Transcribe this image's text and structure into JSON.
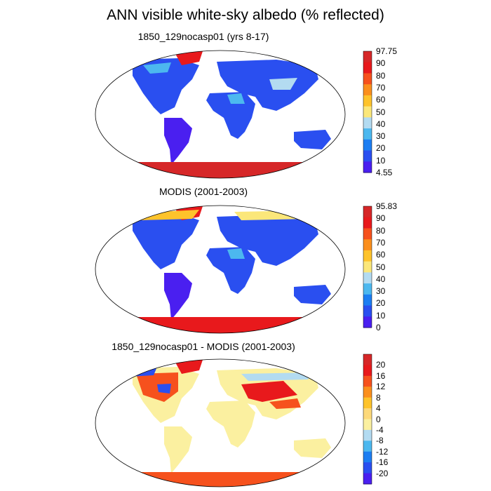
{
  "title": "ANN visible white-sky albedo (% reflected)",
  "panels": [
    {
      "title": "1850_129nocasp01 (yrs 8-17)",
      "colorbar": {
        "labels": [
          "97.75",
          "90",
          "80",
          "70",
          "60",
          "50",
          "40",
          "30",
          "20",
          "10",
          "4.55"
        ],
        "colors": [
          "#d62728",
          "#e8191c",
          "#f6511d",
          "#fb8f1d",
          "#fec32b",
          "#fbe77a",
          "#b3dbf1",
          "#4cb8ef",
          "#1c7ef2",
          "#2a4ff0",
          "#4a1ff0"
        ]
      }
    },
    {
      "title": "MODIS (2001-2003)",
      "colorbar": {
        "labels": [
          "95.83",
          "90",
          "80",
          "70",
          "60",
          "50",
          "40",
          "30",
          "20",
          "10",
          "0"
        ],
        "colors": [
          "#d62728",
          "#e8191c",
          "#f6511d",
          "#fb8f1d",
          "#fec32b",
          "#fbe77a",
          "#b3dbf1",
          "#4cb8ef",
          "#1c7ef2",
          "#2a4ff0",
          "#4a1ff0"
        ]
      }
    },
    {
      "title": "1850_129nocasp01 - MODIS (2001-2003)",
      "colorbar": {
        "labels": [
          "20",
          "16",
          "12",
          "8",
          "4",
          "0",
          "-4",
          "-8",
          "-12",
          "-16",
          "-20"
        ],
        "colors": [
          "#d62728",
          "#e8191c",
          "#f6511d",
          "#fb8f1d",
          "#fec32b",
          "#fdd97a",
          "#fbf0a0",
          "#b3dbf1",
          "#4cb8ef",
          "#1c7ef2",
          "#2a4ff0",
          "#4a1ff0"
        ]
      }
    }
  ]
}
